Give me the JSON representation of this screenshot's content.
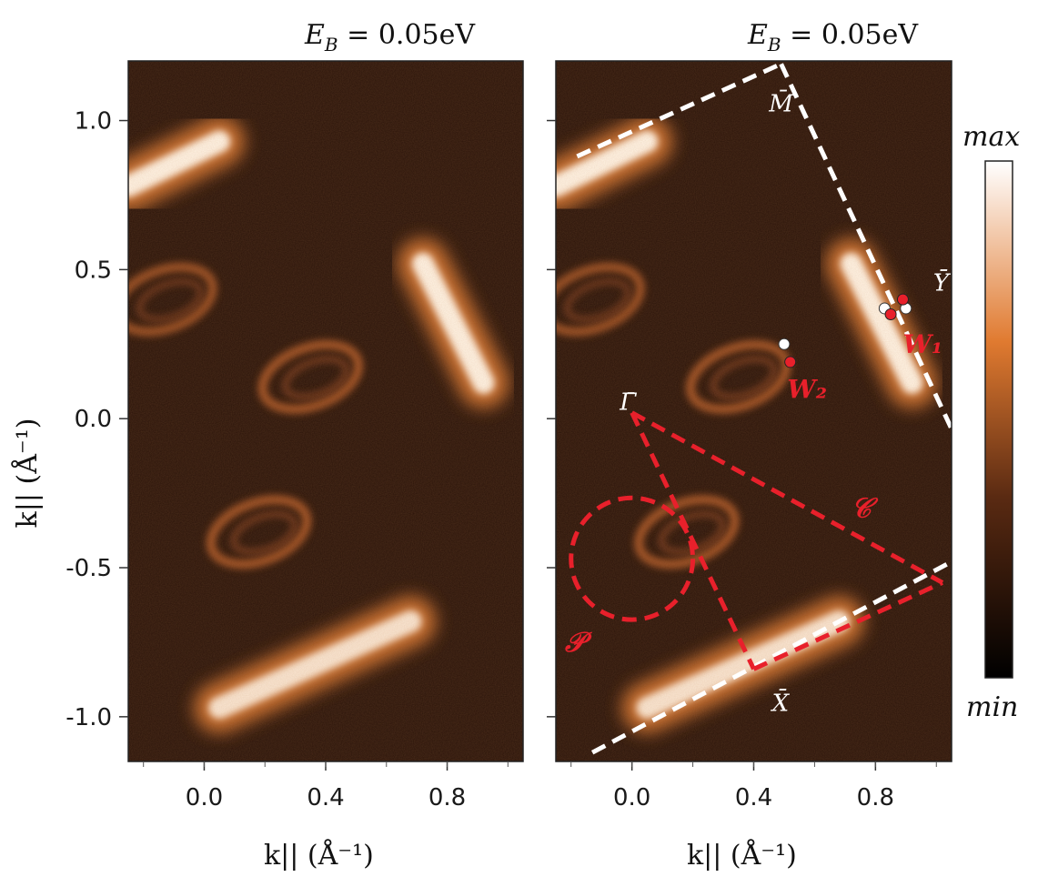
{
  "chart_data": [
    {
      "type": "heatmap",
      "title": "E_B = 0.05eV",
      "xlabel": "k|| (Å⁻¹)",
      "ylabel": "k|| (Å⁻¹)",
      "xlim": [
        -0.25,
        1.05
      ],
      "ylim": [
        -1.15,
        1.2
      ],
      "xticks": [
        "0.0",
        "0.4",
        "0.8"
      ],
      "xtick_values": [
        0.0,
        0.4,
        0.8
      ],
      "yticks": [
        "1.0",
        "0.5",
        "0.0",
        "-0.5",
        "-1.0"
      ],
      "ytick_values": [
        1.0,
        0.5,
        0.0,
        -0.5,
        -1.0
      ],
      "colormap": [
        "#000000",
        "#5a2a12",
        "#e07a30",
        "#ffffff"
      ],
      "features": [
        {
          "shape": "streak",
          "from": [
            -0.25,
            0.78
          ],
          "to": [
            0.05,
            0.93
          ],
          "intensity": 1.0
        },
        {
          "shape": "streak",
          "from": [
            0.72,
            0.52
          ],
          "to": [
            0.92,
            0.12
          ],
          "intensity": 1.0
        },
        {
          "shape": "streak",
          "from": [
            0.05,
            -0.97
          ],
          "to": [
            0.68,
            -0.68
          ],
          "intensity": 0.9
        },
        {
          "shape": "arc",
          "center": [
            0.35,
            0.14
          ],
          "intensity": 0.45
        },
        {
          "shape": "arc",
          "center": [
            0.18,
            -0.38
          ],
          "intensity": 0.45
        },
        {
          "shape": "arc",
          "center": [
            -0.13,
            0.4
          ],
          "intensity": 0.4
        }
      ]
    },
    {
      "type": "heatmap",
      "title": "E_B = 0.05eV",
      "xlabel": "k|| (Å⁻¹)",
      "xlim": [
        -0.25,
        1.05
      ],
      "ylim": [
        -1.15,
        1.2
      ],
      "xticks": [
        "0.0",
        "0.4",
        "0.8"
      ],
      "xtick_values": [
        0.0,
        0.4,
        0.8
      ],
      "colorbar": {
        "max_label": "max",
        "min_label": "min"
      },
      "annotations": {
        "M": {
          "label": "M̄",
          "at": [
            0.45,
            1.03
          ]
        },
        "Y": {
          "label": "Ȳ",
          "at": [
            0.99,
            0.43
          ]
        },
        "Gamma": {
          "label": "Γ̄",
          "at": [
            -0.04,
            0.03
          ]
        },
        "X": {
          "label": "X̄",
          "at": [
            0.46,
            -0.98
          ]
        },
        "W1": {
          "label": "W₁",
          "at": [
            0.89,
            0.22
          ]
        },
        "W2": {
          "label": "W₂",
          "at": [
            0.51,
            0.07
          ]
        },
        "C": {
          "label": "𝒞",
          "at": [
            0.72,
            -0.33
          ]
        },
        "P": {
          "label": "𝒫",
          "at": [
            -0.22,
            -0.78
          ]
        }
      },
      "points": {
        "white": [
          [
            0.83,
            0.37
          ],
          [
            0.9,
            0.37
          ],
          [
            0.5,
            0.25
          ]
        ],
        "red": [
          [
            0.85,
            0.35
          ],
          [
            0.89,
            0.4
          ],
          [
            0.52,
            0.19
          ]
        ]
      },
      "white_dashed_lines": [
        {
          "from": [
            -0.18,
            0.88
          ],
          "to": [
            0.49,
            1.19
          ]
        },
        {
          "from": [
            0.49,
            1.19
          ],
          "to": [
            1.08,
            -0.1
          ]
        },
        {
          "from": [
            -0.13,
            -1.12
          ],
          "to": [
            1.05,
            -0.48
          ]
        }
      ],
      "red_dashed_lines": [
        {
          "from": [
            0.0,
            0.02
          ],
          "to": [
            0.4,
            -0.84
          ]
        },
        {
          "from": [
            0.4,
            -0.84
          ],
          "to": [
            1.02,
            -0.55
          ]
        },
        {
          "from": [
            0.0,
            0.02
          ],
          "to": [
            1.02,
            -0.55
          ]
        }
      ],
      "red_dashed_circle": {
        "center": [
          0.0,
          -0.47
        ],
        "radius": 0.2
      }
    }
  ]
}
